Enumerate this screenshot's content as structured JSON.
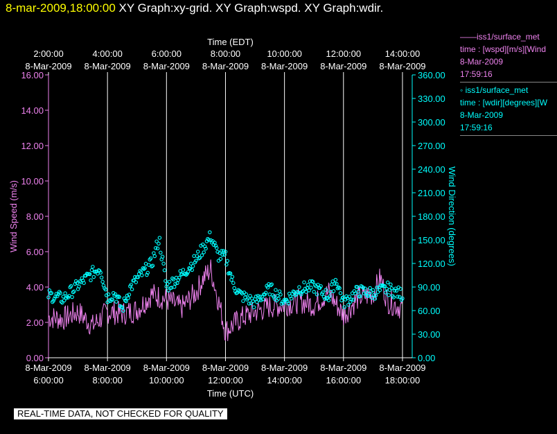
{
  "header": {
    "timestamp": "8-mar-2009,18:00:00",
    "graphs": "XY Graph:xy-grid.  XY Graph:wspd.  XY Graph:wdir."
  },
  "legend": {
    "series1": {
      "name_line": "——iss1/surface_met",
      "var_line": "time : [wspd][m/s][Wind",
      "date": "8-Mar-2009",
      "time": "17:59:16"
    },
    "series2": {
      "name_line": "◦ iss1/surface_met",
      "var_line": "time : [wdir][degrees][W",
      "date": "8-Mar-2009",
      "time": "17:59:16"
    }
  },
  "footer": "REAL-TIME DATA, NOT CHECKED FOR QUALITY",
  "colors": {
    "speed": "#ee82ee",
    "direction": "#00ffff",
    "timestamp": "#ffff00",
    "grid": "#ffffff"
  },
  "chart_data": {
    "type": "line",
    "top_axis": {
      "title": "Time (EDT)",
      "ticks": [
        [
          "2:00:00",
          "8-Mar-2009"
        ],
        [
          "4:00:00",
          "8-Mar-2009"
        ],
        [
          "6:00:00",
          "8-Mar-2009"
        ],
        [
          "8:00:00",
          "8-Mar-2009"
        ],
        [
          "10:00:00",
          "8-Mar-2009"
        ],
        [
          "12:00:00",
          "8-Mar-2009"
        ],
        [
          "14:00:00",
          "8-Mar-2009"
        ]
      ]
    },
    "bottom_axis": {
      "title": "Time (UTC)",
      "ticks": [
        [
          "8-Mar-2009",
          "6:00:00"
        ],
        [
          "8-Mar-2009",
          "8:00:00"
        ],
        [
          "8-Mar-2009",
          "10:00:00"
        ],
        [
          "8-Mar-2009",
          "12:00:00"
        ],
        [
          "8-Mar-2009",
          "14:00:00"
        ],
        [
          "8-Mar-2009",
          "16:00:00"
        ],
        [
          "8-Mar-2009",
          "18:00:00"
        ]
      ]
    },
    "x_range_hours_utc": [
      6.0,
      18.33
    ],
    "left_axis": {
      "title": "Wind Speed (m/s)",
      "range": [
        0,
        16
      ],
      "ticks": [
        "0.00",
        "2.00",
        "4.00",
        "6.00",
        "8.00",
        "10.00",
        "12.00",
        "14.00",
        "16.00"
      ]
    },
    "right_axis": {
      "title": "Wind Direction (degrees)",
      "range": [
        0,
        360
      ],
      "ticks": [
        "0.00",
        "30.00",
        "60.00",
        "90.00",
        "120.00",
        "150.00",
        "180.00",
        "210.00",
        "240.00",
        "270.00",
        "300.00",
        "330.00",
        "360.00"
      ]
    },
    "series": [
      {
        "name": "iss1/surface_met wspd",
        "style": "line",
        "x_hours_utc": [
          6.0,
          6.5,
          7.0,
          7.5,
          8.0,
          8.5,
          9.0,
          9.5,
          10.0,
          10.5,
          11.0,
          11.25,
          11.5,
          11.75,
          12.0,
          12.5,
          13.0,
          13.5,
          14.0,
          14.5,
          15.0,
          15.5,
          16.0,
          16.5,
          17.0,
          17.25,
          17.5,
          18.0
        ],
        "values": [
          2.3,
          2.2,
          2.6,
          1.8,
          2.6,
          2.5,
          2.7,
          3.6,
          3.3,
          2.8,
          3.7,
          4.5,
          5.0,
          3.3,
          1.5,
          2.2,
          2.6,
          2.9,
          3.0,
          3.2,
          3.0,
          3.7,
          2.4,
          3.4,
          3.6,
          4.5,
          3.2,
          2.8
        ]
      },
      {
        "name": "iss1/surface_met wdir",
        "style": "points",
        "x_hours_utc": [
          6.0,
          6.5,
          7.0,
          7.5,
          7.75,
          8.0,
          8.25,
          8.5,
          8.75,
          9.0,
          9.5,
          9.75,
          10.0,
          10.5,
          11.0,
          11.25,
          11.5,
          11.75,
          12.0,
          12.25,
          12.5,
          13.0,
          13.5,
          14.0,
          14.5,
          15.0,
          15.5,
          15.75,
          16.0,
          16.5,
          17.0,
          17.5,
          18.0
        ],
        "values": [
          80,
          75,
          92,
          108,
          115,
          77,
          82,
          62,
          88,
          100,
          120,
          152,
          90,
          105,
          125,
          140,
          155,
          130,
          128,
          95,
          80,
          70,
          88,
          72,
          88,
          90,
          78,
          100,
          70,
          85,
          82,
          88,
          80
        ]
      }
    ]
  }
}
